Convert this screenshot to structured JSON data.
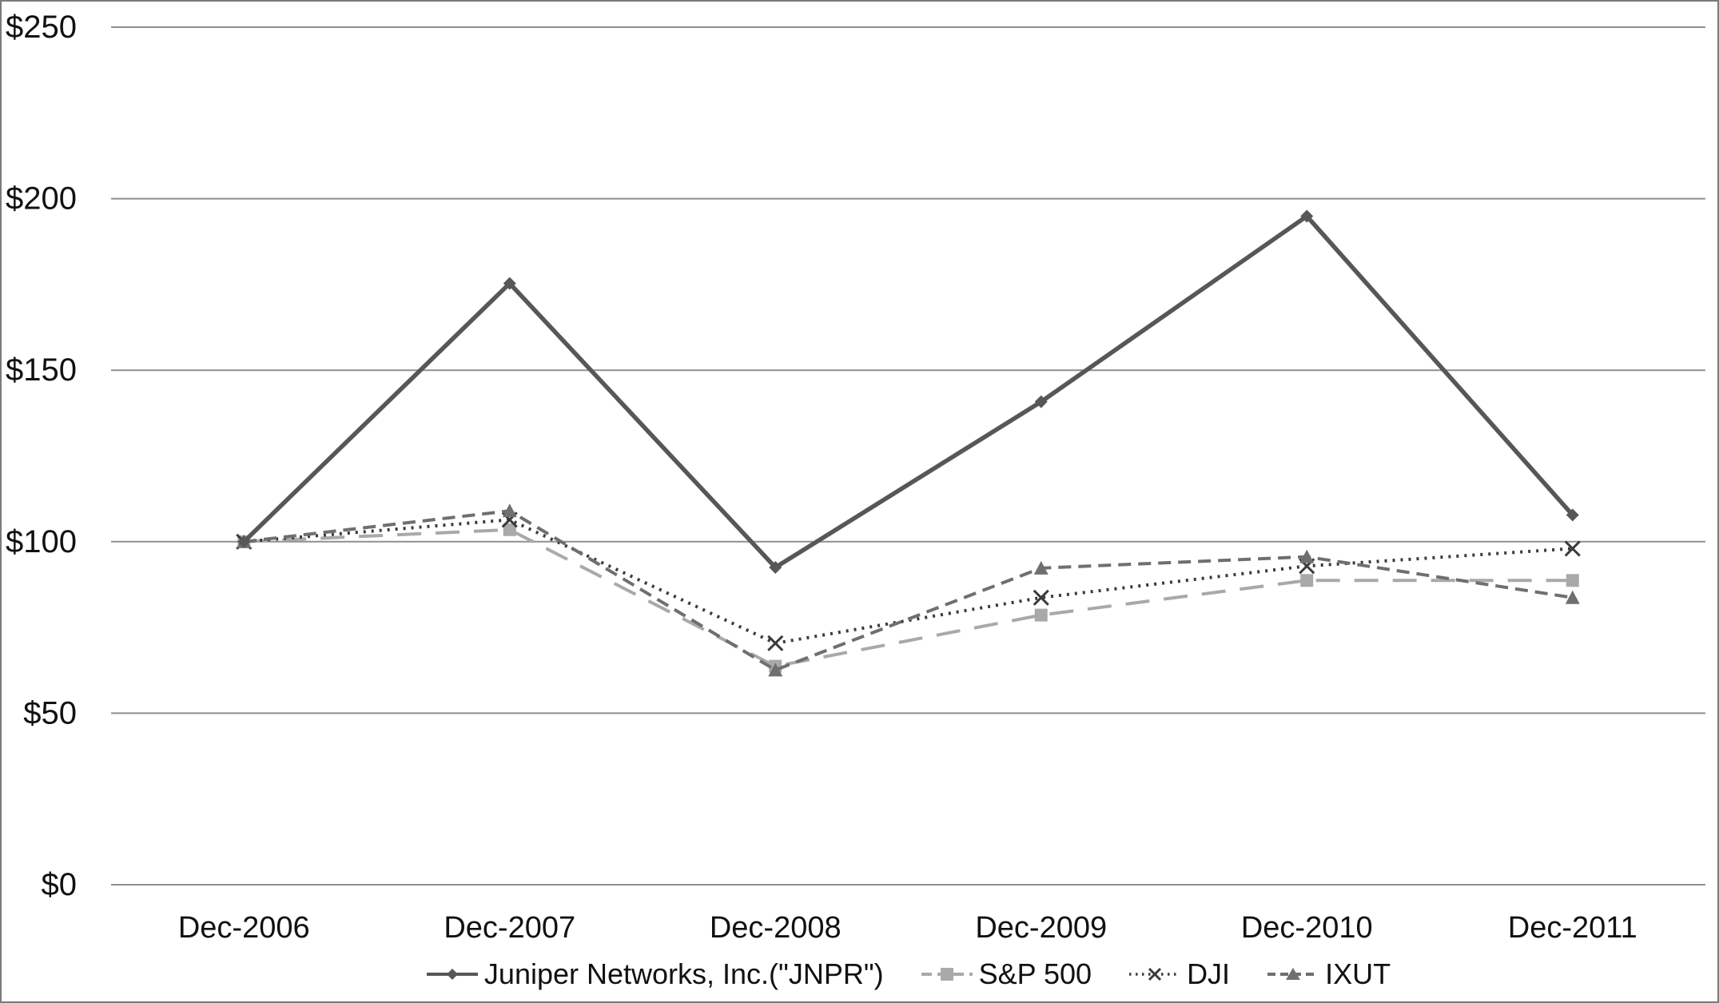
{
  "page": {
    "background": "#ffffff",
    "border_color": "#7a7a7a",
    "text_color": "#111111"
  },
  "chart_data": {
    "type": "line",
    "title": "",
    "xlabel": "",
    "ylabel": "",
    "categories": [
      "Dec-2006",
      "Dec-2007",
      "Dec-2008",
      "Dec-2009",
      "Dec-2010",
      "Dec-2011"
    ],
    "y_tick_labels": [
      "$0",
      "$50",
      "$100",
      "$150",
      "$200",
      "$250"
    ],
    "y_tick_values": [
      0,
      50,
      100,
      150,
      200,
      250
    ],
    "ylim": [
      0,
      250
    ],
    "grid": "horizontal-only",
    "gridline_color": "#8f8f8f",
    "legend_position": "bottom-center",
    "series": [
      {
        "name": "Juniper Networks, Inc.(\"JNPR\")",
        "color": "#575757",
        "line_style": "solid",
        "marker": "diamond",
        "values": [
          100,
          175.3,
          92.5,
          140.8,
          194.9,
          107.8
        ]
      },
      {
        "name": "S&P 500",
        "color": "#a9a9a9",
        "line_style": "long-dash",
        "marker": "square",
        "values": [
          100,
          103.5,
          63.7,
          78.6,
          88.7,
          88.7
        ]
      },
      {
        "name": "DJI",
        "color": "#3b3b3b",
        "line_style": "dotted",
        "marker": "x",
        "values": [
          100,
          106.4,
          70.4,
          83.7,
          92.9,
          98.0
        ]
      },
      {
        "name": "IXUT",
        "color": "#6f6f6f",
        "line_style": "dash",
        "marker": "triangle",
        "values": [
          100,
          109.0,
          62.6,
          92.3,
          95.6,
          83.7
        ]
      }
    ]
  }
}
